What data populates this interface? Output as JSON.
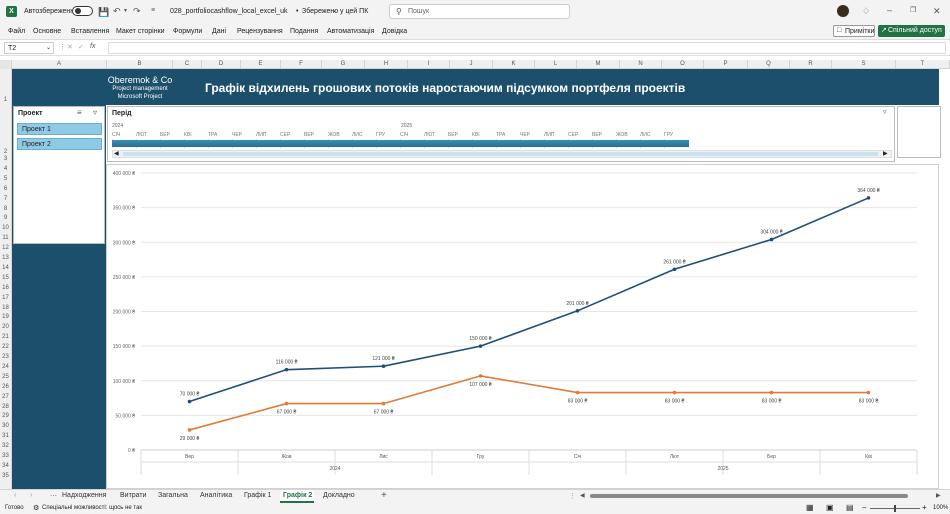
{
  "app": {
    "autosave_label": "Автозбереження",
    "filename": "028_portfoliocashflow_local_excel_uk",
    "save_state": "Збережено у цей ПК",
    "search_placeholder": "Пошук"
  },
  "menu": [
    "Файл",
    "Основне",
    "Вставлення",
    "Макет сторінки",
    "Формули",
    "Дані",
    "Рецензування",
    "Подання",
    "Автоматизація",
    "Довідка"
  ],
  "ribbon_right": {
    "comments": "Примітки",
    "share": "Спільний доступ"
  },
  "formula_bar": {
    "cell_ref": "T2",
    "fx": "fx",
    "value": ""
  },
  "columns": [
    "A",
    "B",
    "C",
    "D",
    "E",
    "F",
    "G",
    "H",
    "I",
    "J",
    "K",
    "L",
    "M",
    "N",
    "O",
    "P",
    "Q",
    "R",
    "S",
    "T"
  ],
  "rows": [
    "1",
    "2",
    "3",
    "4",
    "5",
    "6",
    "7",
    "8",
    "9",
    "10",
    "11",
    "12",
    "13",
    "14",
    "15",
    "16",
    "17",
    "18",
    "19",
    "20",
    "21",
    "22",
    "23",
    "24",
    "25",
    "26",
    "27",
    "28",
    "29",
    "30",
    "31",
    "32",
    "33",
    "34",
    "35"
  ],
  "header": {
    "company": "Oberemok & Co",
    "sub1": "Project management",
    "sub2": "Microsoft Project",
    "title": "Графік відхилень грошових потоків наростаючим підсумком портфеля проектів"
  },
  "slicer": {
    "title": "Проект",
    "items": [
      "Проект 1",
      "Проект 2"
    ]
  },
  "timeline": {
    "title": "Перiд",
    "years": [
      "2024",
      "2025"
    ],
    "months": [
      "СІЧ",
      "ЛЮТ",
      "БЕР",
      "КВІ",
      "ТРА",
      "ЧЕР",
      "ЛИП",
      "СЕР",
      "ВЕР",
      "ЖОВ",
      "ЛИС",
      "ГРУ",
      "СІЧ",
      "ЛЮТ",
      "БЕР",
      "КВІ",
      "ТРА",
      "ЧЕР",
      "ЛИП",
      "СЕР",
      "ВЕР",
      "ЖОВ",
      "ЛИС",
      "ГРУ"
    ]
  },
  "chart_data": {
    "type": "line",
    "categories": [
      "Вер",
      "Жов",
      "Лис",
      "Гру",
      "Січ",
      "Лют",
      "Бер",
      "Кві"
    ],
    "year_groups": [
      {
        "label": "2024",
        "span": 4
      },
      {
        "label": "2025",
        "span": 4
      }
    ],
    "ylim": [
      0,
      400000
    ],
    "yticks": [
      "0 ₴",
      "50 000 ₴",
      "100 000 ₴",
      "150 000 ₴",
      "200 000 ₴",
      "250 000 ₴",
      "300 000 ₴",
      "350 000 ₴",
      "400 000 ₴"
    ],
    "ytick_values": [
      0,
      50000,
      100000,
      150000,
      200000,
      250000,
      300000,
      350000,
      400000
    ],
    "series": [
      {
        "color": "#1f4e79",
        "values": [
          70000,
          116000,
          121000,
          150000,
          201000,
          261000,
          304000,
          364000
        ],
        "labels": [
          "70 000 ₴",
          "116 000 ₴",
          "121 000 ₴",
          "150 000 ₴",
          "201 000 ₴",
          "261 000 ₴",
          "304 000 ₴",
          "364 000 ₴"
        ]
      },
      {
        "color": "#e07b39",
        "values": [
          29000,
          67000,
          67000,
          107000,
          83000,
          83000,
          83000,
          83000
        ],
        "labels": [
          "29 000 ₴",
          "67 000 ₴",
          "67 000 ₴",
          "107 000 ₴",
          "83 000 ₴",
          "83 000 ₴",
          "83 000 ₴",
          "83 000 ₴"
        ]
      }
    ]
  },
  "sheet_tabs": [
    "Надходження",
    "Витрати",
    "Загальна",
    "Аналітика",
    "Графік 1",
    "Графік 2",
    "Докладно"
  ],
  "active_tab": "Графік 2",
  "status": {
    "ready": "Готово",
    "accessibility": "Спеціальні можливості: щось не так",
    "zoom": "100%"
  },
  "colors": {
    "banner": "#1b4f6b",
    "accent_green": "#217346",
    "slicer_item": "#8ecae6"
  }
}
